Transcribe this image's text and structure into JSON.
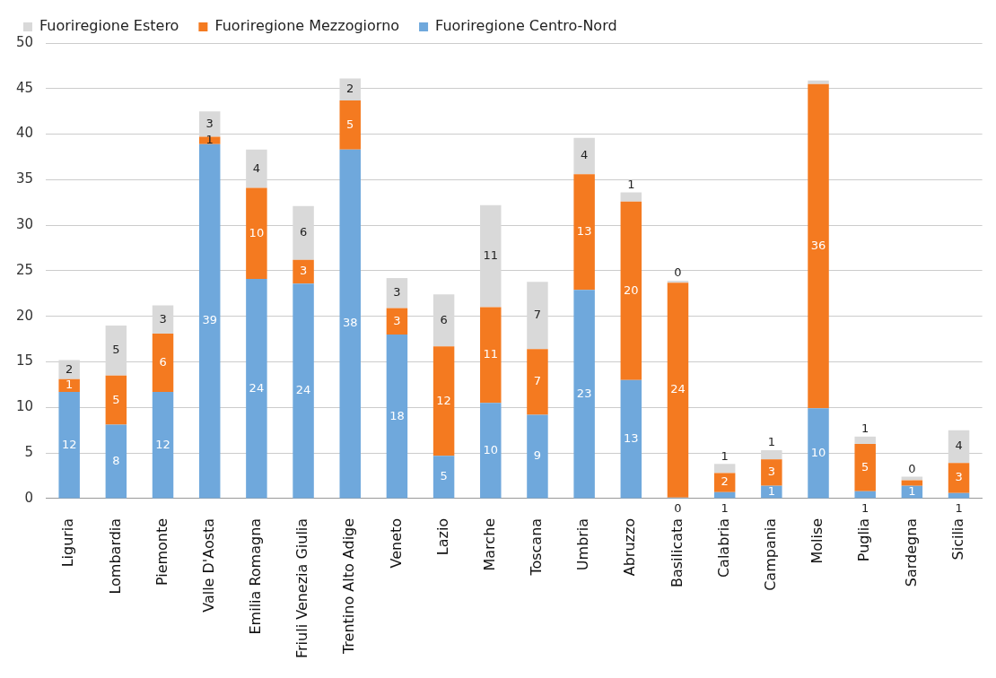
{
  "chart_data": {
    "type": "bar",
    "stacked": true,
    "legend": "top left",
    "grid": "y",
    "categories": [
      "Liguria",
      "Lombardia",
      "Piemonte",
      "Valle D'Aosta",
      "Emilia Romagna",
      "Friuli Venezia Giulia",
      "Trentino Alto Adige",
      "Veneto",
      "Lazio",
      "Marche",
      "Toscana",
      "Umbria",
      "Abruzzo",
      "Basilicata",
      "Calabria",
      "Campania",
      "Molise",
      "Puglia",
      "Sardegna",
      "Sicilia"
    ],
    "ylim": [
      0,
      50
    ],
    "yticks": [
      0,
      5,
      10,
      15,
      20,
      25,
      30,
      35,
      40,
      45,
      50
    ],
    "series": [
      {
        "name": "Fuoriregione Centro-Nord",
        "color": "#6fa8dc",
        "values": [
          11.7,
          8.1,
          11.7,
          38.9,
          24.1,
          23.6,
          38.3,
          18.0,
          4.7,
          10.5,
          9.2,
          22.9,
          13.0,
          0.1,
          0.7,
          1.4,
          9.9,
          0.8,
          1.4,
          0.6
        ],
        "value_labels": [
          "12",
          "8",
          "12",
          "39",
          "24",
          "24",
          "38",
          "18",
          "5",
          "10",
          "9",
          "23",
          "13",
          "0",
          "1",
          "1",
          "10",
          "1",
          "1",
          "1"
        ]
      },
      {
        "name": "Fuoriregione Mezzogiorno",
        "color": "#f47a20",
        "values": [
          1.4,
          5.4,
          6.4,
          0.8,
          10.0,
          2.6,
          5.4,
          2.9,
          12.0,
          10.5,
          7.2,
          12.7,
          19.6,
          23.6,
          2.1,
          2.9,
          35.6,
          5.2,
          0.6,
          3.3
        ],
        "value_labels": [
          "1",
          "5",
          "6",
          "1",
          "10",
          "3",
          "5",
          "3",
          "12",
          "11",
          "7",
          "13",
          "20",
          "24",
          "2",
          "3",
          "36",
          "5",
          null,
          "3"
        ]
      },
      {
        "name": "Fuoriregione Estero",
        "color": "#d9d9d9",
        "values": [
          2.1,
          5.5,
          3.1,
          2.8,
          4.2,
          5.9,
          2.4,
          3.3,
          5.7,
          11.2,
          7.4,
          4.0,
          1.0,
          0.2,
          1.0,
          1.0,
          0.4,
          0.8,
          0.4,
          3.6
        ],
        "value_labels": [
          "2",
          "5",
          "3",
          "3",
          "4",
          "6",
          "2",
          "3",
          "6",
          "11",
          "7",
          "4",
          "1",
          "0",
          "1",
          "1",
          null,
          "1",
          "0",
          "4"
        ]
      }
    ]
  }
}
